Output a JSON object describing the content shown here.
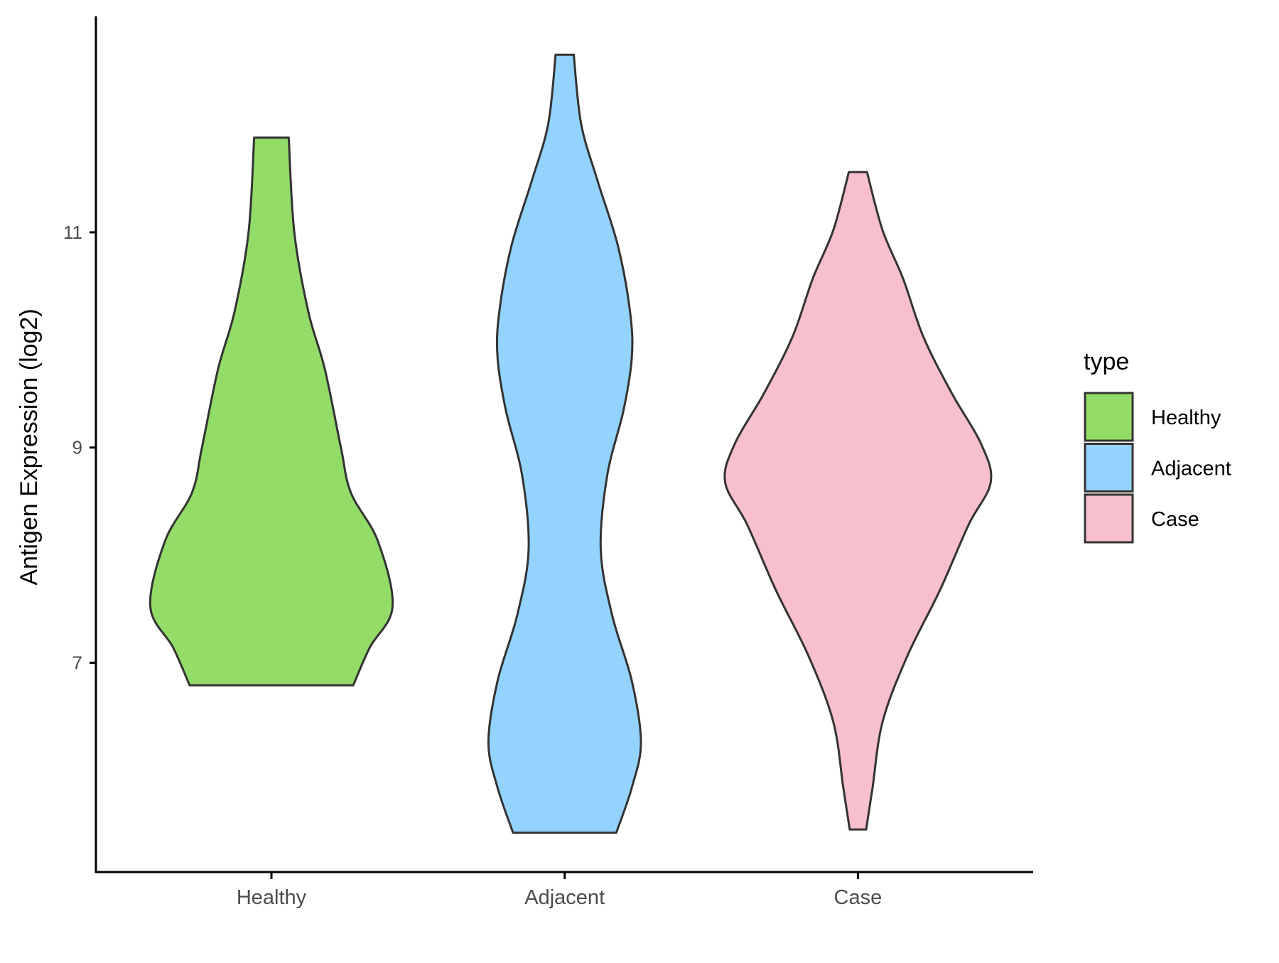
{
  "chart_data": {
    "type": "violin",
    "title": "",
    "xlabel": "",
    "ylabel": "Antigen Expression (log2)",
    "ylim": [
      5.1,
      13.0
    ],
    "yticks": [
      7,
      9,
      11
    ],
    "categories": [
      "Healthy",
      "Adjacent",
      "Case"
    ],
    "legend": {
      "title": "type",
      "placement": "right",
      "entries": [
        "Healthy",
        "Adjacent",
        "Case"
      ]
    },
    "colors": {
      "Healthy": "#93DC68",
      "Adjacent": "#93D3FE",
      "Case": "#F7C0CC",
      "outline": "#333333"
    },
    "series": [
      {
        "name": "Healthy",
        "profile_note": "[value, half-width in category units]",
        "profile": [
          [
            11.88,
            0.059
          ],
          [
            11.0,
            0.078
          ],
          [
            10.26,
            0.126
          ],
          [
            9.73,
            0.182
          ],
          [
            9.0,
            0.237
          ],
          [
            8.58,
            0.271
          ],
          [
            8.13,
            0.363
          ],
          [
            7.52,
            0.413
          ],
          [
            7.14,
            0.335
          ],
          [
            6.79,
            0.279
          ]
        ]
      },
      {
        "name": "Adjacent",
        "profile": [
          [
            12.65,
            0.031
          ],
          [
            12.01,
            0.056
          ],
          [
            11.48,
            0.112
          ],
          [
            10.87,
            0.182
          ],
          [
            10.26,
            0.223
          ],
          [
            9.84,
            0.229
          ],
          [
            9.35,
            0.201
          ],
          [
            8.74,
            0.145
          ],
          [
            8.05,
            0.123
          ],
          [
            7.44,
            0.162
          ],
          [
            6.83,
            0.229
          ],
          [
            6.26,
            0.26
          ],
          [
            5.84,
            0.229
          ],
          [
            5.42,
            0.176
          ]
        ]
      },
      {
        "name": "Case",
        "profile": [
          [
            11.56,
            0.031
          ],
          [
            11.02,
            0.084
          ],
          [
            10.57,
            0.154
          ],
          [
            10.03,
            0.223
          ],
          [
            9.5,
            0.321
          ],
          [
            9.04,
            0.419
          ],
          [
            8.68,
            0.453
          ],
          [
            8.28,
            0.377
          ],
          [
            7.67,
            0.279
          ],
          [
            7.06,
            0.168
          ],
          [
            6.45,
            0.084
          ],
          [
            5.84,
            0.05
          ],
          [
            5.45,
            0.028
          ]
        ]
      }
    ]
  }
}
